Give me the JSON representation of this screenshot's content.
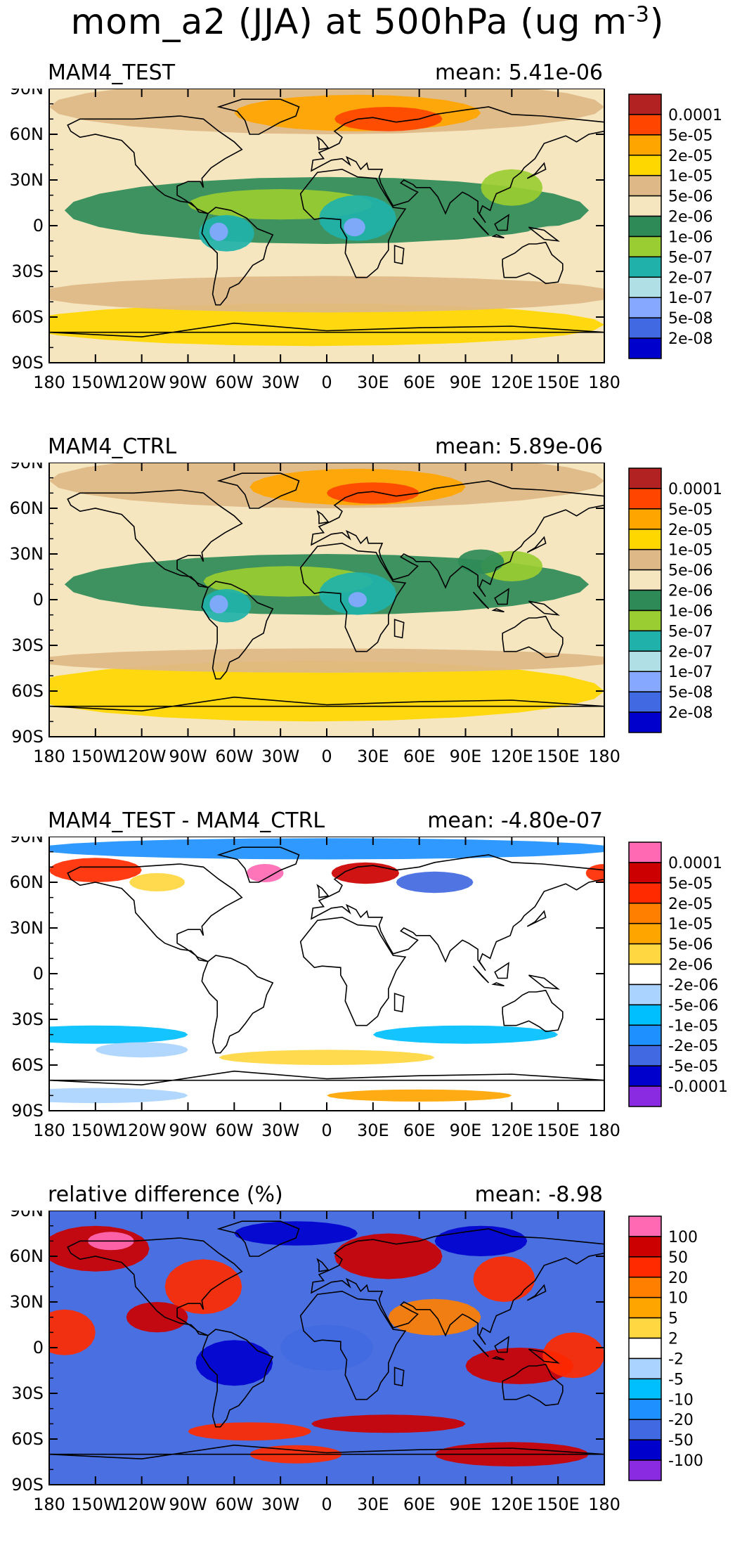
{
  "title": {
    "text": "mom_a2 (JJA) at 500hPa (ug m",
    "sup": "-3",
    "close": ")"
  },
  "lat_labels": [
    "90N",
    "60N",
    "30N",
    "0",
    "30S",
    "60S",
    "90S"
  ],
  "lon_labels": [
    "180",
    "150W",
    "120W",
    "90W",
    "60W",
    "30W",
    "0",
    "30E",
    "60E",
    "90E",
    "120E",
    "150E",
    "180"
  ],
  "panels": [
    {
      "label": "MAM4_TEST",
      "mean": "mean: 5.41e-06",
      "background_color": "#f5e6c0",
      "legend_labels": [
        "0.0001",
        "5e-05",
        "2e-05",
        "1e-05",
        "5e-06",
        "2e-06",
        "1e-06",
        "5e-07",
        "2e-07",
        "1e-07",
        "5e-08",
        "2e-08"
      ],
      "legend_colors": [
        "#b22222",
        "#ff4500",
        "#ffa500",
        "#ffd700",
        "#deb887",
        "#f5e6c0",
        "#2e8b57",
        "#9acd32",
        "#20b2aa",
        "#b0e0e6",
        "#87a8ff",
        "#4169e1",
        "#0000cd"
      ]
    },
    {
      "label": "MAM4_CTRL",
      "mean": "mean: 5.89e-06",
      "background_color": "#f5e6c0",
      "legend_labels": [
        "0.0001",
        "5e-05",
        "2e-05",
        "1e-05",
        "5e-06",
        "2e-06",
        "1e-06",
        "5e-07",
        "2e-07",
        "1e-07",
        "5e-08",
        "2e-08"
      ],
      "legend_colors": [
        "#b22222",
        "#ff4500",
        "#ffa500",
        "#ffd700",
        "#deb887",
        "#f5e6c0",
        "#2e8b57",
        "#9acd32",
        "#20b2aa",
        "#b0e0e6",
        "#87a8ff",
        "#4169e1",
        "#0000cd"
      ]
    },
    {
      "label": "MAM4_TEST - MAM4_CTRL",
      "mean": "mean: -4.80e-07",
      "background_color": "#ffffff",
      "legend_labels": [
        "0.0001",
        "5e-05",
        "2e-05",
        "1e-05",
        "5e-06",
        "2e-06",
        "-2e-06",
        "-5e-06",
        "-1e-05",
        "-2e-05",
        "-5e-05",
        "-0.0001"
      ],
      "legend_colors": [
        "#ff69b4",
        "#cc0000",
        "#ff2a00",
        "#ff7f00",
        "#ffa500",
        "#ffd740",
        "#ffffff",
        "#aad4ff",
        "#00bfff",
        "#1e90ff",
        "#4169e1",
        "#0000cd",
        "#8a2be2"
      ]
    },
    {
      "label": "relative difference (%)",
      "mean": "mean: -8.98",
      "background_color": "#4a6fe0",
      "legend_labels": [
        "100",
        "50",
        "20",
        "10",
        "5",
        "2",
        "-2",
        "-5",
        "-10",
        "-20",
        "-50",
        "-100"
      ],
      "legend_colors": [
        "#ff69b4",
        "#cc0000",
        "#ff2a00",
        "#ff7f00",
        "#ffa500",
        "#ffd740",
        "#ffffff",
        "#aad4ff",
        "#00bfff",
        "#1e90ff",
        "#4169e1",
        "#0000cd",
        "#8a2be2"
      ]
    }
  ]
}
